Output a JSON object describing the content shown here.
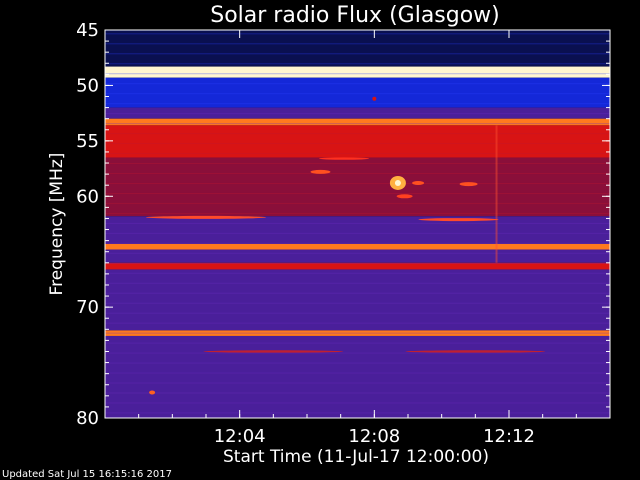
{
  "chart_data": {
    "type": "heatmap",
    "title": "Solar radio Flux (Glasgow)",
    "xlabel": "Start Time (11-Jul-17 12:00:00)",
    "ylabel": "Frequency [MHz]",
    "x_range_minutes": [
      0,
      15
    ],
    "ylim": [
      45,
      80
    ],
    "y_inverted": true,
    "x_ticks": [
      {
        "value": 4,
        "label": "12:04"
      },
      {
        "value": 8,
        "label": "12:08"
      },
      {
        "value": 12,
        "label": "12:12"
      }
    ],
    "y_ticks": [
      {
        "value": 45,
        "label": "45"
      },
      {
        "value": 50,
        "label": "50"
      },
      {
        "value": 55,
        "label": "55"
      },
      {
        "value": 60,
        "label": "60"
      },
      {
        "value": 70,
        "label": "70"
      },
      {
        "value": 80,
        "label": "80"
      }
    ],
    "intensity_bands_mhz": [
      {
        "from": 45.0,
        "to": 48.3,
        "level": "dark-blue"
      },
      {
        "from": 48.3,
        "to": 49.3,
        "level": "white"
      },
      {
        "from": 49.3,
        "to": 52.0,
        "level": "blue"
      },
      {
        "from": 52.0,
        "to": 53.0,
        "level": "purple"
      },
      {
        "from": 53.0,
        "to": 53.6,
        "level": "orange"
      },
      {
        "from": 53.6,
        "to": 56.5,
        "level": "red"
      },
      {
        "from": 56.5,
        "to": 61.8,
        "level": "dark-red"
      },
      {
        "from": 61.8,
        "to": 64.3,
        "level": "purple"
      },
      {
        "from": 64.3,
        "to": 64.8,
        "level": "orange"
      },
      {
        "from": 64.8,
        "to": 66.0,
        "level": "purple"
      },
      {
        "from": 66.0,
        "to": 66.6,
        "level": "red"
      },
      {
        "from": 66.6,
        "to": 72.1,
        "level": "purple"
      },
      {
        "from": 72.1,
        "to": 72.6,
        "level": "orange"
      },
      {
        "from": 72.6,
        "to": 80.0,
        "level": "purple"
      }
    ],
    "colors": {
      "dark-blue": "#0a1050",
      "blue": "#1428d8",
      "purple": "#4a1f9a",
      "dark-red": "#8a0f3a",
      "red": "#d81414",
      "orange": "#ff7a1e",
      "white": "#fff6d0"
    }
  },
  "footer": "Updated Sat Jul 15 16:15:16 2017"
}
